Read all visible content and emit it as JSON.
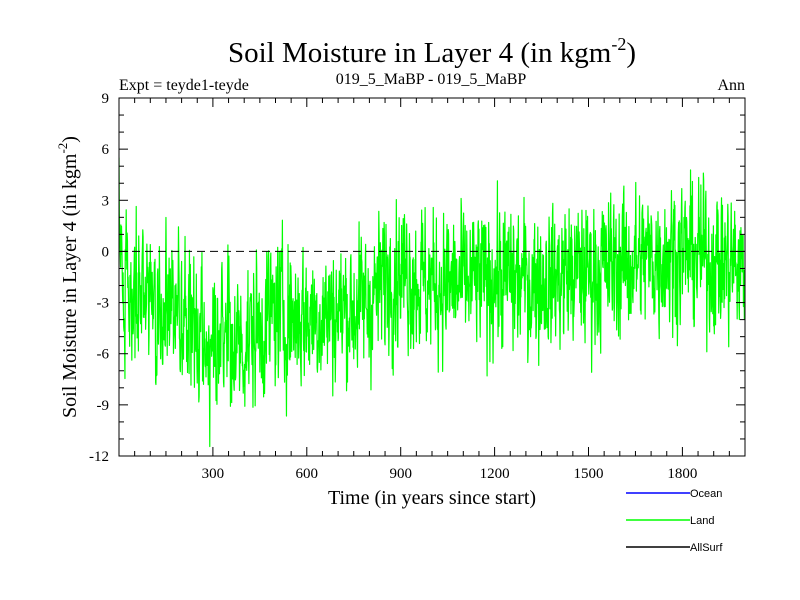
{
  "colors": {
    "ocean": "#0000ff",
    "land": "#00ff00",
    "allsurf": "#000000"
  },
  "header": {
    "expt": "Expt = teyde1-teyde",
    "subtitle": "019_5_MaBP - 019_5_MaBP",
    "period": "Ann"
  },
  "chart_data": {
    "type": "line",
    "title": "Soil Moisture in Layer 4 (in kgm",
    "title_sup": "-2",
    "title_end": ")",
    "xlabel": "Time (in years since start)",
    "ylabel": "Soil Moisture in Layer 4 (in kgm",
    "ylabel_sup": "-2",
    "ylabel_end": ")",
    "xlim": [
      0,
      2000
    ],
    "ylim": [
      -12,
      9
    ],
    "xticks": [
      300,
      600,
      900,
      1200,
      1500,
      1800
    ],
    "yticks": [
      -12,
      -9,
      -6,
      -3,
      0,
      3,
      6,
      9
    ],
    "reference_line": 0,
    "trend_points": [
      [
        0,
        0.5
      ],
      [
        30,
        -1.5
      ],
      [
        100,
        -3.2
      ],
      [
        200,
        -4.0
      ],
      [
        300,
        -4.8
      ],
      [
        400,
        -5.3
      ],
      [
        500,
        -3.5
      ],
      [
        600,
        -3.8
      ],
      [
        700,
        -3.5
      ],
      [
        800,
        -3.0
      ],
      [
        850,
        -1.5
      ],
      [
        900,
        -1.0
      ],
      [
        1000,
        -2.0
      ],
      [
        1100,
        -2.0
      ],
      [
        1200,
        -1.5
      ],
      [
        1300,
        -1.8
      ],
      [
        1400,
        -1.5
      ],
      [
        1500,
        -1.2
      ],
      [
        1600,
        -0.8
      ],
      [
        1700,
        -0.3
      ],
      [
        1800,
        0.0
      ],
      [
        1900,
        -0.5
      ],
      [
        2000,
        -1.0
      ]
    ],
    "noise_amplitude": 2.0,
    "series": [
      {
        "name": "Ocean",
        "color": "#0000ff"
      },
      {
        "name": "Land",
        "color": "#00ff00"
      },
      {
        "name": "AllSurf",
        "color": "#000000"
      }
    ]
  }
}
